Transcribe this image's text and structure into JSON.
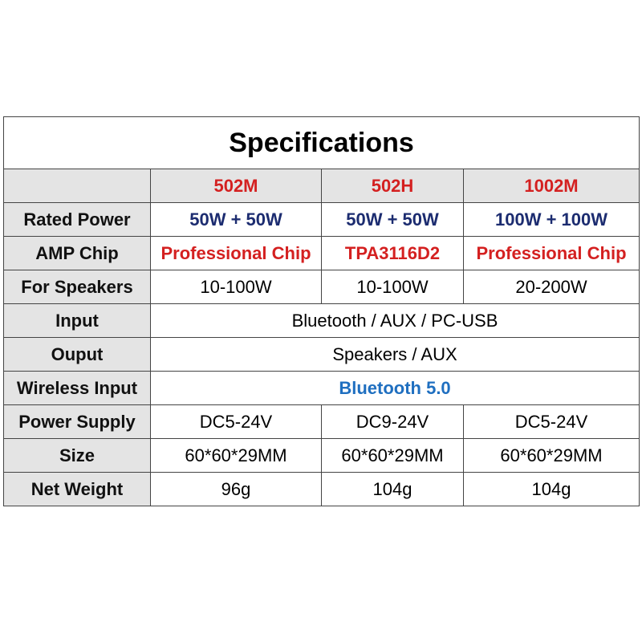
{
  "title": "Specifications",
  "table": {
    "header": [
      "502M",
      "502H",
      "1002M"
    ],
    "rows": [
      [
        "Rated Power",
        "50W + 50W",
        "50W + 50W",
        "100W + 100W"
      ],
      [
        "AMP Chip",
        "Professional Chip",
        "TPA3116D2",
        "Professional Chip"
      ],
      [
        "For Speakers",
        "10-100W",
        "10-100W",
        "20-200W"
      ],
      [
        "Input",
        "Bluetooth / AUX / PC-USB"
      ],
      [
        "Ouput",
        "Speakers / AUX"
      ],
      [
        "Wireless Input",
        "Bluetooth 5.0"
      ],
      [
        "Power Supply",
        "DC5-24V",
        "DC9-24V",
        "DC5-24V"
      ],
      [
        "Size",
        "60*60*29MM",
        "60*60*29MM",
        "60*60*29MM"
      ],
      [
        "Net Weight",
        "96g",
        "104g",
        "104g"
      ]
    ]
  }
}
